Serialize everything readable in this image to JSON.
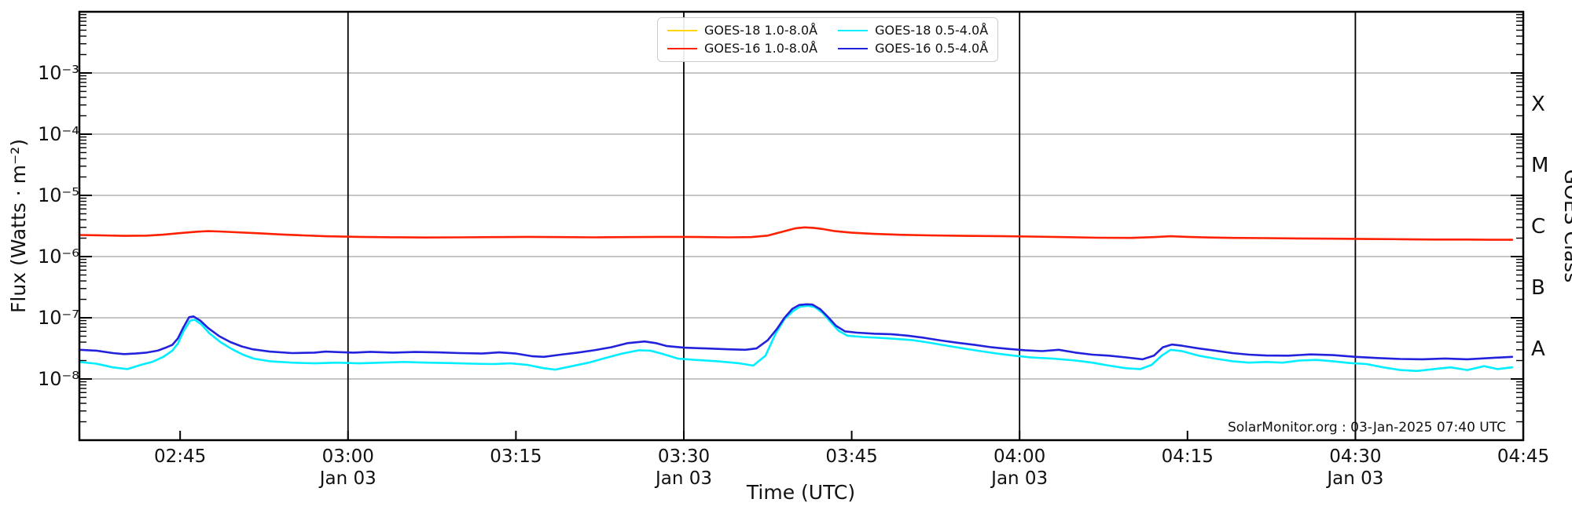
{
  "annotation": "SolarMonitor.org : 03-Jan-2025 07:40 UTC",
  "axes": {
    "x_label": "Time (UTC)",
    "y_label": "Flux (Watts · m⁻²)",
    "right_label": "GOES Class",
    "x_start_label": "02:45",
    "x_end_label": "04:45",
    "x_ticks": [
      {
        "minutes": 165,
        "label": "02:45"
      },
      {
        "minutes": 180,
        "label": "03:00",
        "date": "Jan 03",
        "line": true
      },
      {
        "minutes": 195,
        "label": "03:15"
      },
      {
        "minutes": 210,
        "label": "03:30",
        "date": "Jan 03",
        "line": true
      },
      {
        "minutes": 225,
        "label": "03:45"
      },
      {
        "minutes": 240,
        "label": "04:00",
        "date": "Jan 03",
        "line": true
      },
      {
        "minutes": 255,
        "label": "04:15"
      },
      {
        "minutes": 270,
        "label": "04:30",
        "date": "Jan 03",
        "line": true
      },
      {
        "minutes": 285,
        "label": "04:45"
      }
    ],
    "y_ticks": [
      {
        "exp": -3,
        "label": "10⁻³"
      },
      {
        "exp": -4,
        "label": "10⁻⁴"
      },
      {
        "exp": -5,
        "label": "10⁻⁵"
      },
      {
        "exp": -6,
        "label": "10⁻⁶"
      },
      {
        "exp": -7,
        "label": "10⁻⁷"
      },
      {
        "exp": -8,
        "label": "10⁻⁸"
      }
    ],
    "goes_classes": [
      {
        "label": "X",
        "center_exp": -3.5
      },
      {
        "label": "M",
        "center_exp": -4.5
      },
      {
        "label": "C",
        "center_exp": -5.5
      },
      {
        "label": "B",
        "center_exp": -6.5
      },
      {
        "label": "A",
        "center_exp": -7.5
      }
    ]
  },
  "legend": {
    "column_order": [
      0,
      1,
      2,
      3
    ]
  },
  "chart_data": {
    "type": "line",
    "title": "",
    "xlabel": "Time (UTC)",
    "ylabel": "Flux (Watts · m⁻²)",
    "x_unit": "minutes since 00:00 UTC on 03-Jan-2025",
    "x_range_minutes": [
      156,
      285
    ],
    "ylim_exponents": [
      -9,
      -2
    ],
    "grid": "horizontal gray lines each decade; vertical black lines each 30 min",
    "legend_position": "top-center",
    "series": [
      {
        "id": "goes18-long",
        "name": "GOES-18 1.0-8.0Å",
        "color": "#ffd400",
        "points": []
      },
      {
        "id": "goes16-long",
        "name": "GOES-16 1.0-8.0Å",
        "color": "#ff2000",
        "points": [
          [
            156,
            2.25e-06
          ],
          [
            158,
            2.22e-06
          ],
          [
            160,
            2.18e-06
          ],
          [
            162,
            2.2e-06
          ],
          [
            163.5,
            2.28e-06
          ],
          [
            165,
            2.42e-06
          ],
          [
            166.5,
            2.55e-06
          ],
          [
            167.5,
            2.6e-06
          ],
          [
            168.5,
            2.57e-06
          ],
          [
            170,
            2.5e-06
          ],
          [
            172,
            2.4e-06
          ],
          [
            174,
            2.3e-06
          ],
          [
            176,
            2.22e-06
          ],
          [
            178,
            2.15e-06
          ],
          [
            181,
            2.1e-06
          ],
          [
            184,
            2.07e-06
          ],
          [
            187,
            2.05e-06
          ],
          [
            190,
            2.06e-06
          ],
          [
            193,
            2.08e-06
          ],
          [
            196,
            2.1e-06
          ],
          [
            199,
            2.08e-06
          ],
          [
            202,
            2.06e-06
          ],
          [
            205,
            2.08e-06
          ],
          [
            208,
            2.1e-06
          ],
          [
            210,
            2.1e-06
          ],
          [
            212,
            2.08e-06
          ],
          [
            214,
            2.06e-06
          ],
          [
            216,
            2.08e-06
          ],
          [
            217.5,
            2.2e-06
          ],
          [
            219,
            2.6e-06
          ],
          [
            220,
            2.9e-06
          ],
          [
            220.8,
            3e-06
          ],
          [
            221.6,
            2.95e-06
          ],
          [
            222.5,
            2.8e-06
          ],
          [
            223.5,
            2.6e-06
          ],
          [
            225,
            2.45e-06
          ],
          [
            227,
            2.35e-06
          ],
          [
            229,
            2.28e-06
          ],
          [
            232,
            2.22e-06
          ],
          [
            235,
            2.18e-06
          ],
          [
            238,
            2.16e-06
          ],
          [
            241,
            2.12e-06
          ],
          [
            244,
            2.08e-06
          ],
          [
            247,
            2.03e-06
          ],
          [
            250,
            2.02e-06
          ],
          [
            252,
            2.08e-06
          ],
          [
            253.5,
            2.15e-06
          ],
          [
            255,
            2.1e-06
          ],
          [
            257,
            2.05e-06
          ],
          [
            259,
            2.02e-06
          ],
          [
            262,
            2e-06
          ],
          [
            265,
            1.98e-06
          ],
          [
            268,
            1.96e-06
          ],
          [
            271,
            1.94e-06
          ],
          [
            274,
            1.92e-06
          ],
          [
            277,
            1.9e-06
          ],
          [
            280,
            1.9e-06
          ],
          [
            282,
            1.88e-06
          ],
          [
            284,
            1.88e-06
          ]
        ]
      },
      {
        "id": "goes18-short",
        "name": "GOES-18 0.5-4.0Å",
        "color": "#00eeff",
        "points": [
          [
            156,
            1.9e-08
          ],
          [
            157.5,
            1.78e-08
          ],
          [
            159,
            1.55e-08
          ],
          [
            160.3,
            1.45e-08
          ],
          [
            161.5,
            1.7e-08
          ],
          [
            162.5,
            1.9e-08
          ],
          [
            163.5,
            2.3e-08
          ],
          [
            164.3,
            2.9e-08
          ],
          [
            164.8,
            3.8e-08
          ],
          [
            165.3,
            6e-08
          ],
          [
            165.9,
            9e-08
          ],
          [
            166.3,
            9.3e-08
          ],
          [
            166.9,
            7.8e-08
          ],
          [
            167.6,
            5.6e-08
          ],
          [
            168.6,
            4e-08
          ],
          [
            169.6,
            3.1e-08
          ],
          [
            170.6,
            2.5e-08
          ],
          [
            171.6,
            2.15e-08
          ],
          [
            173,
            1.95e-08
          ],
          [
            175,
            1.85e-08
          ],
          [
            177,
            1.8e-08
          ],
          [
            179,
            1.85e-08
          ],
          [
            181,
            1.8e-08
          ],
          [
            183,
            1.85e-08
          ],
          [
            185,
            1.9e-08
          ],
          [
            187,
            1.85e-08
          ],
          [
            189,
            1.82e-08
          ],
          [
            191,
            1.78e-08
          ],
          [
            193,
            1.75e-08
          ],
          [
            194.5,
            1.8e-08
          ],
          [
            196,
            1.7e-08
          ],
          [
            197.5,
            1.5e-08
          ],
          [
            198.5,
            1.42e-08
          ],
          [
            200,
            1.62e-08
          ],
          [
            201.5,
            1.85e-08
          ],
          [
            203,
            2.2e-08
          ],
          [
            204.5,
            2.6e-08
          ],
          [
            206,
            2.95e-08
          ],
          [
            207,
            2.9e-08
          ],
          [
            208,
            2.6e-08
          ],
          [
            209.5,
            2.15e-08
          ],
          [
            211,
            2.05e-08
          ],
          [
            213,
            1.95e-08
          ],
          [
            215,
            1.8e-08
          ],
          [
            216.2,
            1.65e-08
          ],
          [
            217.3,
            2.4e-08
          ],
          [
            218.2,
            5.5e-08
          ],
          [
            219,
            9.5e-08
          ],
          [
            219.8,
            1.3e-07
          ],
          [
            220.4,
            1.52e-07
          ],
          [
            221.1,
            1.57e-07
          ],
          [
            221.7,
            1.5e-07
          ],
          [
            222.4,
            1.2e-07
          ],
          [
            223.1,
            8.6e-08
          ],
          [
            223.8,
            6.2e-08
          ],
          [
            224.6,
            5.1e-08
          ],
          [
            226,
            4.85e-08
          ],
          [
            227.5,
            4.7e-08
          ],
          [
            229,
            4.5e-08
          ],
          [
            230.5,
            4.3e-08
          ],
          [
            232,
            3.9e-08
          ],
          [
            233.5,
            3.5e-08
          ],
          [
            235,
            3.15e-08
          ],
          [
            236.5,
            2.85e-08
          ],
          [
            238,
            2.6e-08
          ],
          [
            239.5,
            2.4e-08
          ],
          [
            241,
            2.25e-08
          ],
          [
            243,
            2.15e-08
          ],
          [
            245,
            2e-08
          ],
          [
            246.5,
            1.85e-08
          ],
          [
            248,
            1.65e-08
          ],
          [
            249.5,
            1.5e-08
          ],
          [
            250.8,
            1.45e-08
          ],
          [
            251.8,
            1.7e-08
          ],
          [
            252.7,
            2.4e-08
          ],
          [
            253.5,
            3e-08
          ],
          [
            254.5,
            2.85e-08
          ],
          [
            256,
            2.4e-08
          ],
          [
            257.5,
            2.15e-08
          ],
          [
            259,
            1.95e-08
          ],
          [
            260.5,
            1.85e-08
          ],
          [
            262,
            1.9e-08
          ],
          [
            263.5,
            1.85e-08
          ],
          [
            265,
            2e-08
          ],
          [
            266.5,
            2.05e-08
          ],
          [
            268,
            1.95e-08
          ],
          [
            269.5,
            1.82e-08
          ],
          [
            271,
            1.75e-08
          ],
          [
            272.5,
            1.55e-08
          ],
          [
            274,
            1.4e-08
          ],
          [
            275.5,
            1.35e-08
          ],
          [
            277,
            1.45e-08
          ],
          [
            278.5,
            1.55e-08
          ],
          [
            280,
            1.4e-08
          ],
          [
            281.5,
            1.62e-08
          ],
          [
            282.7,
            1.45e-08
          ],
          [
            284,
            1.55e-08
          ]
        ]
      },
      {
        "id": "goes16-short",
        "name": "GOES-16 0.5-4.0Å",
        "color": "#2222dd",
        "points": [
          [
            156,
            3e-08
          ],
          [
            157.5,
            2.9e-08
          ],
          [
            159,
            2.65e-08
          ],
          [
            160,
            2.55e-08
          ],
          [
            161,
            2.6e-08
          ],
          [
            162,
            2.7e-08
          ],
          [
            163,
            2.9e-08
          ],
          [
            163.8,
            3.3e-08
          ],
          [
            164.3,
            3.6e-08
          ],
          [
            164.8,
            4.6e-08
          ],
          [
            165.3,
            7e-08
          ],
          [
            165.8,
            1.02e-07
          ],
          [
            166.2,
            1.05e-07
          ],
          [
            166.8,
            9e-08
          ],
          [
            167.5,
            6.8e-08
          ],
          [
            168.5,
            5e-08
          ],
          [
            169.5,
            4e-08
          ],
          [
            170.5,
            3.4e-08
          ],
          [
            171.5,
            3.05e-08
          ],
          [
            173,
            2.8e-08
          ],
          [
            175,
            2.65e-08
          ],
          [
            177,
            2.7e-08
          ],
          [
            178,
            2.8e-08
          ],
          [
            179,
            2.75e-08
          ],
          [
            180.5,
            2.7e-08
          ],
          [
            182,
            2.78e-08
          ],
          [
            184,
            2.7e-08
          ],
          [
            186,
            2.76e-08
          ],
          [
            188,
            2.72e-08
          ],
          [
            190,
            2.65e-08
          ],
          [
            192,
            2.6e-08
          ],
          [
            193.5,
            2.72e-08
          ],
          [
            195,
            2.6e-08
          ],
          [
            196.5,
            2.35e-08
          ],
          [
            197.5,
            2.3e-08
          ],
          [
            199,
            2.5e-08
          ],
          [
            200.5,
            2.7e-08
          ],
          [
            202,
            2.95e-08
          ],
          [
            203.5,
            3.3e-08
          ],
          [
            205,
            3.85e-08
          ],
          [
            206.5,
            4.1e-08
          ],
          [
            207.5,
            3.85e-08
          ],
          [
            208.5,
            3.45e-08
          ],
          [
            210,
            3.25e-08
          ],
          [
            212,
            3.15e-08
          ],
          [
            214,
            3.05e-08
          ],
          [
            215.5,
            3e-08
          ],
          [
            216.5,
            3.15e-08
          ],
          [
            217.5,
            4.3e-08
          ],
          [
            218.3,
            6.5e-08
          ],
          [
            219,
            1e-07
          ],
          [
            219.7,
            1.4e-07
          ],
          [
            220.3,
            1.62e-07
          ],
          [
            221,
            1.66e-07
          ],
          [
            221.5,
            1.64e-07
          ],
          [
            222.2,
            1.38e-07
          ],
          [
            222.9,
            1.02e-07
          ],
          [
            223.6,
            7.4e-08
          ],
          [
            224.4,
            6e-08
          ],
          [
            225.5,
            5.7e-08
          ],
          [
            227,
            5.5e-08
          ],
          [
            228.5,
            5.4e-08
          ],
          [
            230,
            5.1e-08
          ],
          [
            231.5,
            4.7e-08
          ],
          [
            233,
            4.25e-08
          ],
          [
            234.5,
            3.9e-08
          ],
          [
            236,
            3.6e-08
          ],
          [
            237.5,
            3.3e-08
          ],
          [
            239,
            3.1e-08
          ],
          [
            240.5,
            2.95e-08
          ],
          [
            242,
            2.85e-08
          ],
          [
            243.5,
            3e-08
          ],
          [
            245,
            2.7e-08
          ],
          [
            246.5,
            2.5e-08
          ],
          [
            248,
            2.4e-08
          ],
          [
            249.5,
            2.25e-08
          ],
          [
            251,
            2.1e-08
          ],
          [
            252,
            2.4e-08
          ],
          [
            252.8,
            3.3e-08
          ],
          [
            253.6,
            3.65e-08
          ],
          [
            254.5,
            3.5e-08
          ],
          [
            256,
            3.15e-08
          ],
          [
            257.5,
            2.9e-08
          ],
          [
            259,
            2.65e-08
          ],
          [
            260.5,
            2.5e-08
          ],
          [
            262,
            2.42e-08
          ],
          [
            264,
            2.4e-08
          ],
          [
            266,
            2.52e-08
          ],
          [
            268,
            2.45e-08
          ],
          [
            270,
            2.3e-08
          ],
          [
            272,
            2.2e-08
          ],
          [
            274,
            2.12e-08
          ],
          [
            276,
            2.1e-08
          ],
          [
            278,
            2.16e-08
          ],
          [
            280,
            2.1e-08
          ],
          [
            282,
            2.2e-08
          ],
          [
            284,
            2.3e-08
          ]
        ]
      }
    ],
    "colors": {
      "grid_line": "#b4b4b4",
      "half_hour_line": "#000000",
      "frame": "#000000"
    }
  }
}
